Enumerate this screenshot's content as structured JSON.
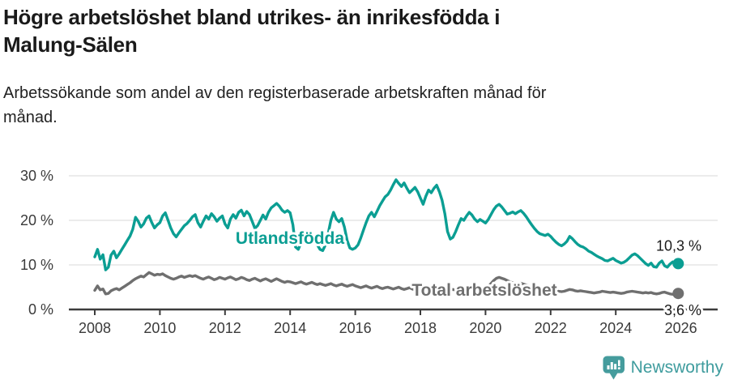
{
  "header": {
    "title": "Högre arbetslöshet bland utrikes- än inrikesfödda i Malung-Sälen",
    "subtitle": "Arbetssökande som andel av den registerbaserade arbetskraften månad för månad."
  },
  "footer": {
    "brand": "Newsworthy",
    "brand_color": "#3f9c9e"
  },
  "chart_data": {
    "type": "line",
    "title": "Högre arbetslöshet bland utrikes- än inrikesfödda i Malung-Sälen",
    "subtitle": "Arbetssökande som andel av den registerbaserade arbetskraften månad för månad.",
    "x_unit": "month",
    "x_start": "2008-01",
    "x_end": "2025-12",
    "ylim": [
      0,
      32
    ],
    "grid": "horizontal",
    "y_ticks": [
      {
        "value": 0,
        "label": "0 %"
      },
      {
        "value": 10,
        "label": "10 %"
      },
      {
        "value": 20,
        "label": "20 %"
      },
      {
        "value": 30,
        "label": "30 %"
      }
    ],
    "x_ticks": [
      {
        "year": 2008,
        "label": "2008"
      },
      {
        "year": 2010,
        "label": "2010"
      },
      {
        "year": 2012,
        "label": "2012"
      },
      {
        "year": 2014,
        "label": "2014"
      },
      {
        "year": 2016,
        "label": "2016"
      },
      {
        "year": 2018,
        "label": "2018"
      },
      {
        "year": 2020,
        "label": "2020"
      },
      {
        "year": 2022,
        "label": "2022"
      },
      {
        "year": 2024,
        "label": "2024"
      },
      {
        "year": 2026,
        "label": "2026"
      }
    ],
    "series": [
      {
        "name": "Utlandsfödda",
        "color": "#0b9e93",
        "end_value": 10.3,
        "end_label": "10,3 %",
        "values": [
          11.8,
          13.5,
          11.3,
          12.3,
          8.9,
          9.5,
          12.2,
          13.1,
          11.6,
          12.5,
          13.5,
          14.5,
          15.5,
          16.5,
          18.0,
          20.7,
          19.8,
          18.5,
          19.2,
          20.5,
          21.0,
          19.5,
          18.3,
          19.0,
          19.5,
          21.0,
          21.7,
          20.0,
          18.3,
          17.0,
          16.3,
          17.2,
          18.0,
          18.8,
          19.3,
          20.0,
          20.8,
          21.3,
          19.5,
          18.5,
          19.8,
          21.0,
          20.3,
          21.5,
          20.8,
          19.8,
          20.5,
          21.0,
          19.2,
          18.3,
          20.3,
          21.3,
          20.5,
          21.8,
          22.3,
          21.0,
          22.0,
          21.3,
          19.8,
          18.2,
          18.8,
          20.0,
          21.2,
          20.3,
          21.8,
          22.8,
          23.3,
          23.8,
          23.2,
          22.3,
          21.8,
          22.2,
          21.7,
          19.0,
          14.0,
          13.5,
          15.0,
          16.0,
          16.8,
          17.5,
          16.5,
          15.5,
          14.5,
          13.5,
          13.2,
          14.5,
          17.0,
          20.0,
          21.8,
          20.3,
          19.7,
          20.4,
          18.5,
          15.5,
          13.8,
          13.5,
          13.8,
          14.5,
          16.0,
          17.8,
          19.5,
          21.0,
          21.8,
          20.8,
          22.0,
          23.3,
          24.3,
          25.3,
          25.8,
          26.8,
          28.0,
          29.1,
          28.3,
          27.6,
          28.4,
          27.2,
          26.2,
          26.8,
          27.4,
          26.4,
          25.0,
          23.6,
          25.4,
          26.8,
          26.2,
          27.2,
          27.9,
          26.4,
          24.5,
          21.5,
          17.5,
          15.8,
          16.2,
          17.5,
          19.0,
          20.4,
          20.0,
          21.0,
          21.8,
          21.2,
          20.3,
          19.7,
          20.2,
          19.8,
          19.4,
          20.2,
          21.3,
          22.4,
          23.2,
          23.6,
          23.0,
          22.2,
          21.4,
          21.6,
          21.9,
          21.5,
          21.9,
          22.2,
          21.6,
          20.8,
          19.9,
          19.0,
          18.2,
          17.5,
          17.0,
          16.8,
          16.6,
          16.9,
          16.4,
          15.7,
          15.1,
          14.6,
          14.3,
          14.7,
          15.3,
          16.4,
          15.9,
          15.2,
          14.6,
          14.2,
          14.0,
          13.6,
          13.1,
          12.8,
          12.4,
          12.0,
          11.7,
          11.4,
          11.0,
          10.9,
          11.2,
          11.5,
          11.0,
          10.7,
          10.4,
          10.6,
          11.0,
          11.6,
          12.2,
          12.5,
          12.1,
          11.5,
          10.9,
          10.3,
          9.9,
          10.4,
          9.6,
          9.5,
          10.4,
          10.9,
          9.8,
          9.5,
          10.2,
          10.7,
          10.4,
          10.3
        ]
      },
      {
        "name": "Total arbetslöshet",
        "color": "#6f6f6f",
        "end_value": 3.6,
        "end_label": "3,6 %",
        "values": [
          4.3,
          5.3,
          4.4,
          4.6,
          3.5,
          3.6,
          4.2,
          4.5,
          4.7,
          4.4,
          4.8,
          5.2,
          5.6,
          6.0,
          6.5,
          6.9,
          7.2,
          7.5,
          7.3,
          7.8,
          8.3,
          8.0,
          7.7,
          7.9,
          7.8,
          8.0,
          7.6,
          7.3,
          7.0,
          6.8,
          7.0,
          7.3,
          7.5,
          7.2,
          7.4,
          7.6,
          7.4,
          7.6,
          7.3,
          7.0,
          6.8,
          7.1,
          7.3,
          7.0,
          6.7,
          6.9,
          7.2,
          7.0,
          6.8,
          7.1,
          7.3,
          7.0,
          6.7,
          6.9,
          7.2,
          7.0,
          6.7,
          6.5,
          6.8,
          7.0,
          6.7,
          6.4,
          6.7,
          6.9,
          6.6,
          6.3,
          6.6,
          6.9,
          6.6,
          6.3,
          6.1,
          6.3,
          6.2,
          6.0,
          5.8,
          6.0,
          6.2,
          5.9,
          5.7,
          5.9,
          6.1,
          5.8,
          5.6,
          5.8,
          5.6,
          5.4,
          5.6,
          5.8,
          5.5,
          5.3,
          5.5,
          5.7,
          5.4,
          5.2,
          5.4,
          5.6,
          5.3,
          5.1,
          4.9,
          5.1,
          5.3,
          5.0,
          4.8,
          5.0,
          5.2,
          4.9,
          4.7,
          4.9,
          5.0,
          4.8,
          4.6,
          4.8,
          5.0,
          4.7,
          4.5,
          4.7,
          4.9,
          4.6,
          4.4,
          4.6,
          4.7,
          4.5,
          4.3,
          4.5,
          4.7,
          4.4,
          4.2,
          4.4,
          4.6,
          4.3,
          4.2,
          4.4,
          4.5,
          4.3,
          4.2,
          4.4,
          4.6,
          4.3,
          4.2,
          4.4,
          4.6,
          4.4,
          4.5,
          4.8,
          5.0,
          5.2,
          5.8,
          6.5,
          7.0,
          7.2,
          7.0,
          6.8,
          6.5,
          6.2,
          6.0,
          5.9,
          5.8,
          5.9,
          5.7,
          5.5,
          5.3,
          5.1,
          4.9,
          4.7,
          4.6,
          4.5,
          4.4,
          4.5,
          4.4,
          4.3,
          4.2,
          4.1,
          4.0,
          4.1,
          4.3,
          4.5,
          4.4,
          4.2,
          4.1,
          4.2,
          4.1,
          4.0,
          3.9,
          3.8,
          3.7,
          3.8,
          3.9,
          4.1,
          4.0,
          3.9,
          3.8,
          3.9,
          3.8,
          3.7,
          3.6,
          3.7,
          3.9,
          4.0,
          4.1,
          4.0,
          3.9,
          3.8,
          3.7,
          3.8,
          3.7,
          3.8,
          3.6,
          3.5,
          3.6,
          3.8,
          3.9,
          3.7,
          3.5,
          3.4,
          3.5,
          3.6
        ]
      }
    ],
    "legend_position": "inline-labels",
    "colors": {
      "grid": "#e1e1e1",
      "axis": "#3c3c3c",
      "tick_label": "#3a3a3a",
      "value_label": "#1a1a1a"
    }
  }
}
